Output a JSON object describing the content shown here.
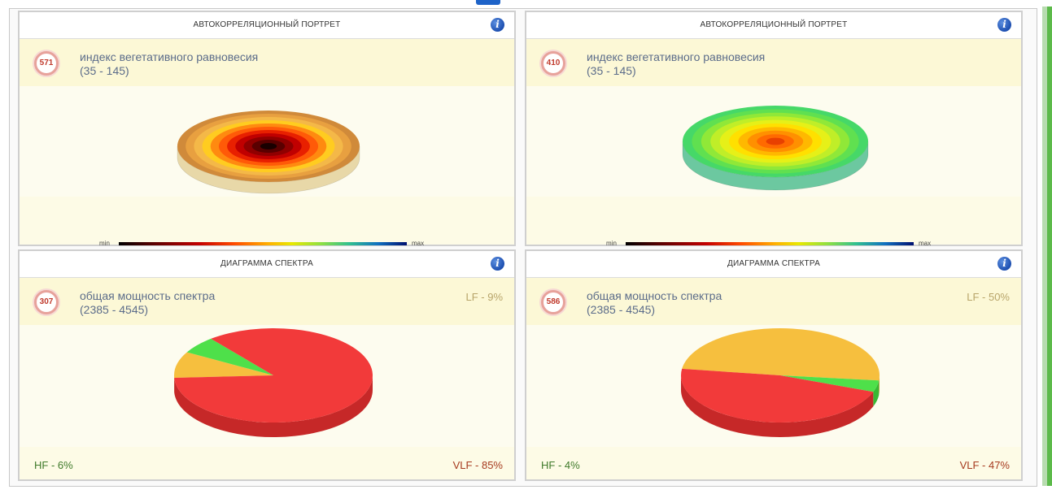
{
  "panels": [
    {
      "title": "АВТОКОРРЕЛЯЦИОННЫЙ ПОРТРЕТ",
      "badge": "571",
      "metric_name": "индекс вегетативного равновесия",
      "metric_range": "(35 - 145)",
      "scale_min": "min",
      "scale_max": "max",
      "colors": [
        "#d08a3a",
        "#e8a040",
        "#f4b848",
        "#ffcc20",
        "#ff8a10",
        "#ff5a08",
        "#e82000",
        "#c00000",
        "#900000",
        "#5a0000",
        "#1a0000"
      ],
      "side_color": "#e8d8a8"
    },
    {
      "title": "АВТОКОРРЕЛЯЦИОННЫЙ ПОРТРЕТ",
      "badge": "410",
      "metric_name": "индекс вегетативного равновесия",
      "metric_range": "(35 - 145)",
      "scale_min": "min",
      "scale_max": "max",
      "colors": [
        "#46d868",
        "#60e050",
        "#90e838",
        "#c0ee28",
        "#e6f018",
        "#ffe000",
        "#ffb800",
        "#ff9000",
        "#ff6a00",
        "#e84000"
      ],
      "side_color": "#6cc8a0"
    },
    {
      "title": "ДИАГРАММА СПЕКТРА",
      "badge": "307",
      "metric_name": "общая мощность спектра",
      "metric_range": "(2385 - 4545)",
      "lf_label": "LF - 9%",
      "hf_label": "HF - 6%",
      "vlf_label": "VLF - 85%"
    },
    {
      "title": "ДИАГРАММА СПЕКТРА",
      "badge": "586",
      "metric_name": "общая мощность спектра",
      "metric_range": "(2385 - 4545)",
      "lf_label": "LF - 50%",
      "hf_label": "HF - 4%",
      "vlf_label": "VLF - 47%"
    }
  ],
  "chart_data": [
    {
      "type": "pie",
      "categories": [
        "LF",
        "HF",
        "VLF"
      ],
      "values": [
        9,
        6,
        85
      ],
      "colors": [
        "#f6bf3e",
        "#4ee04a",
        "#f23a3a"
      ],
      "side_colors": [
        "#d89c2a",
        "#38b834",
        "#c62828"
      ]
    },
    {
      "type": "pie",
      "categories": [
        "LF",
        "HF",
        "VLF"
      ],
      "values": [
        50,
        4,
        47
      ],
      "colors": [
        "#f6bf3e",
        "#4ee04a",
        "#f23a3a"
      ],
      "side_colors": [
        "#d89c2a",
        "#38b834",
        "#c62828"
      ]
    }
  ]
}
